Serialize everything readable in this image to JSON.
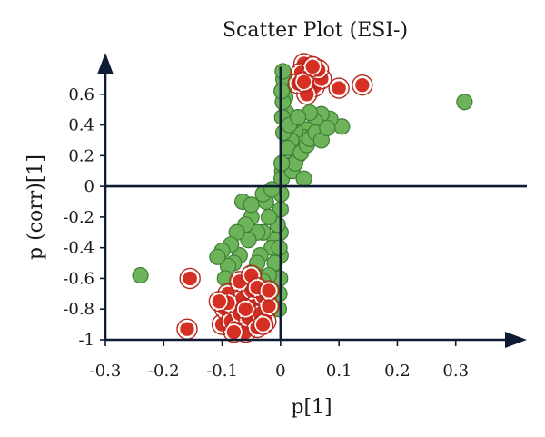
{
  "chart_data": {
    "type": "scatter",
    "title": "Scatter Plot (ESI-)",
    "xlabel": "p[1]",
    "ylabel": "p (corr)[1]",
    "xlim": [
      -0.3,
      0.4
    ],
    "ylim": [
      -1,
      0.8
    ],
    "xticks": [
      -0.3,
      -0.2,
      -0.1,
      0,
      0.1,
      0.2,
      0.3
    ],
    "xtick_labels": [
      "-0.3",
      "-0.2",
      "-0.1",
      "0",
      "0.1",
      "0.2",
      "0.3"
    ],
    "yticks": [
      -1,
      -0.8,
      -0.6,
      -0.4,
      -0.2,
      0,
      0.2,
      0.4,
      0.6
    ],
    "ytick_labels": [
      "-1",
      "-0.8",
      "-0.6",
      "-0.4",
      "-0.2",
      "0",
      "0.2",
      "0.4",
      "0.6"
    ],
    "grid": false,
    "colors": {
      "green": "#6db35a",
      "red": "#d63024",
      "axis": "#0d1b33"
    },
    "series": [
      {
        "color": "green",
        "points": [
          [
            -0.24,
            -0.58
          ],
          [
            0.315,
            0.55
          ],
          [
            0.105,
            0.39
          ],
          [
            0.085,
            0.44
          ],
          [
            0.07,
            0.47
          ],
          [
            0.06,
            0.42
          ],
          [
            0.05,
            0.48
          ],
          [
            0.045,
            0.37
          ],
          [
            0.04,
            0.32
          ],
          [
            0.035,
            0.28
          ],
          [
            0.03,
            0.2
          ],
          [
            0.025,
            0.36
          ],
          [
            0.02,
            0.42
          ],
          [
            0.018,
            0.3
          ],
          [
            0.015,
            0.14
          ],
          [
            0.012,
            0.25
          ],
          [
            0.01,
            0.48
          ],
          [
            0.008,
            0.58
          ],
          [
            0.006,
            0.65
          ],
          [
            0.005,
            0.7
          ],
          [
            0.004,
            0.75
          ],
          [
            0.004,
            0.55
          ],
          [
            0.003,
            0.45
          ],
          [
            0.003,
            0.1
          ],
          [
            0.002,
            0.05
          ],
          [
            0.001,
            -0.05
          ],
          [
            0.0,
            -0.15
          ],
          [
            0.0,
            -0.3
          ],
          [
            0.0,
            -0.45
          ],
          [
            -0.001,
            -0.6
          ],
          [
            -0.002,
            -0.7
          ],
          [
            -0.003,
            -0.8
          ],
          [
            0.02,
            0.1
          ],
          [
            0.025,
            0.15
          ],
          [
            0.035,
            0.22
          ],
          [
            0.045,
            0.27
          ],
          [
            0.05,
            0.31
          ],
          [
            -0.005,
            -0.25
          ],
          [
            -0.01,
            -0.35
          ],
          [
            -0.015,
            -0.4
          ],
          [
            -0.02,
            -0.2
          ],
          [
            -0.025,
            -0.1
          ],
          [
            -0.03,
            -0.3
          ],
          [
            -0.035,
            -0.45
          ],
          [
            -0.04,
            -0.3
          ],
          [
            -0.045,
            -0.55
          ],
          [
            -0.05,
            -0.2
          ],
          [
            -0.055,
            -0.35
          ],
          [
            -0.06,
            -0.25
          ],
          [
            -0.065,
            -0.1
          ],
          [
            -0.07,
            -0.45
          ],
          [
            -0.075,
            -0.3
          ],
          [
            -0.08,
            -0.5
          ],
          [
            -0.085,
            -0.38
          ],
          [
            -0.09,
            -0.52
          ],
          [
            -0.095,
            -0.6
          ],
          [
            -0.1,
            -0.42
          ],
          [
            -0.108,
            -0.46
          ],
          [
            -0.03,
            -0.05
          ],
          [
            -0.015,
            -0.02
          ],
          [
            -0.05,
            -0.12
          ],
          [
            0.005,
            0.35
          ],
          [
            0.015,
            0.4
          ],
          [
            0.03,
            0.45
          ],
          [
            0.06,
            0.35
          ],
          [
            0.07,
            0.3
          ],
          [
            0.08,
            0.38
          ],
          [
            0.04,
            0.05
          ],
          [
            -0.01,
            -0.5
          ],
          [
            -0.02,
            -0.58
          ],
          [
            -0.03,
            -0.62
          ],
          [
            -0.04,
            -0.5
          ],
          [
            0.002,
            0.15
          ],
          [
            0.002,
            0.62
          ],
          [
            -0.002,
            -0.4
          ]
        ]
      },
      {
        "color": "red",
        "points": [
          [
            0.04,
            0.8
          ],
          [
            0.035,
            0.74
          ],
          [
            0.05,
            0.72
          ],
          [
            0.058,
            0.65
          ],
          [
            0.07,
            0.7
          ],
          [
            0.045,
            0.6
          ],
          [
            0.1,
            0.64
          ],
          [
            0.14,
            0.66
          ],
          [
            0.03,
            0.67
          ],
          [
            0.065,
            0.76
          ],
          [
            0.04,
            0.68
          ],
          [
            0.055,
            0.78
          ],
          [
            -0.155,
            -0.6
          ],
          [
            -0.16,
            -0.93
          ],
          [
            -0.1,
            -0.9
          ],
          [
            -0.095,
            -0.8
          ],
          [
            -0.09,
            -0.7
          ],
          [
            -0.085,
            -0.88
          ],
          [
            -0.08,
            -0.78
          ],
          [
            -0.075,
            -0.92
          ],
          [
            -0.07,
            -0.83
          ],
          [
            -0.065,
            -0.73
          ],
          [
            -0.06,
            -0.95
          ],
          [
            -0.055,
            -0.86
          ],
          [
            -0.05,
            -0.68
          ],
          [
            -0.045,
            -0.78
          ],
          [
            -0.04,
            -0.92
          ],
          [
            -0.035,
            -0.83
          ],
          [
            -0.03,
            -0.72
          ],
          [
            -0.025,
            -0.88
          ],
          [
            -0.02,
            -0.78
          ],
          [
            -0.07,
            -0.62
          ],
          [
            -0.05,
            -0.58
          ],
          [
            -0.04,
            -0.66
          ],
          [
            -0.09,
            -0.76
          ],
          [
            -0.06,
            -0.8
          ],
          [
            -0.03,
            -0.9
          ],
          [
            -0.02,
            -0.68
          ],
          [
            -0.105,
            -0.75
          ],
          [
            -0.08,
            -0.95
          ]
        ]
      }
    ]
  }
}
